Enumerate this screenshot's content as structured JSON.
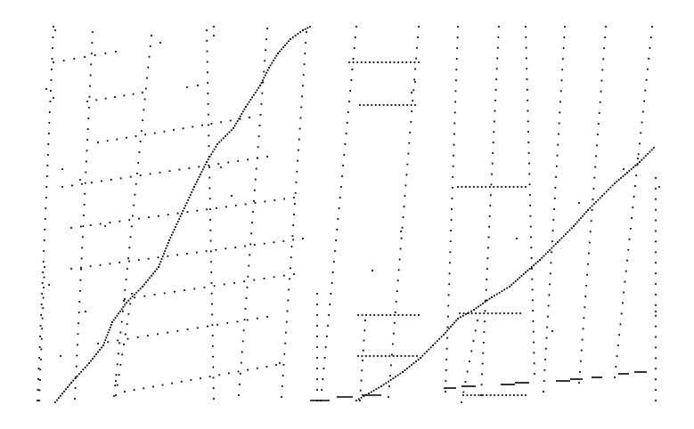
{
  "canvas": {
    "background": "#ffffff",
    "ink": "#000000"
  },
  "description_tokens": {
    "panels": 2
  }
}
